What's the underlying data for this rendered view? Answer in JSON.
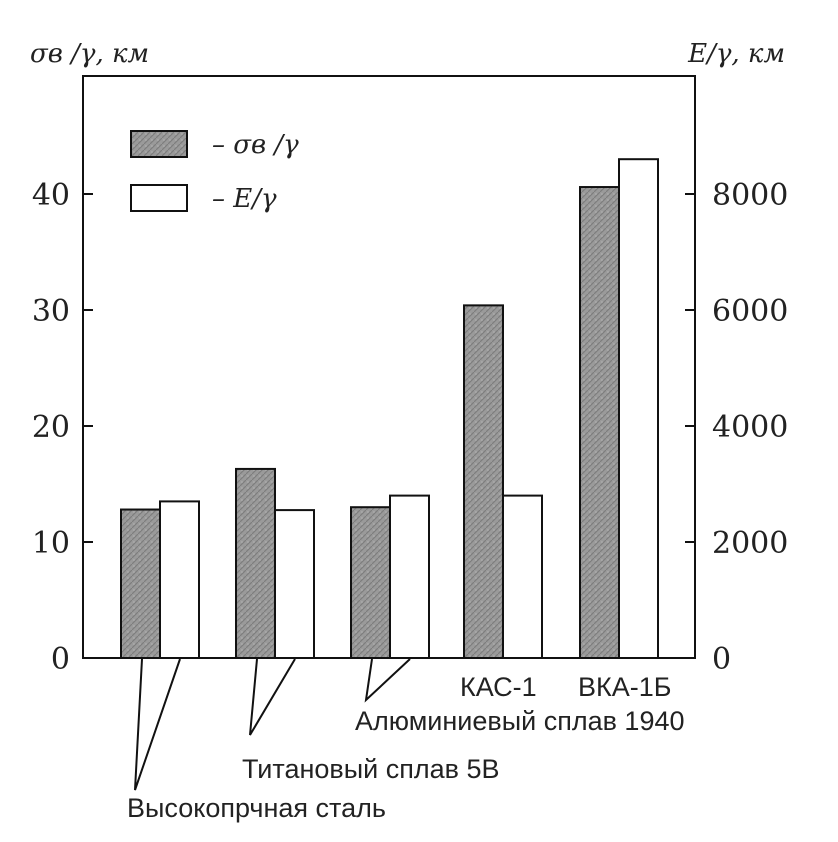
{
  "chart_data": {
    "type": "bar",
    "left_axis_title": "σв /γ, км",
    "right_axis_title": "E/γ, км",
    "left_ticks": [
      "0",
      "10",
      "20",
      "30",
      "40"
    ],
    "left_tick_values": [
      0,
      10,
      20,
      30,
      40
    ],
    "right_ticks": [
      "0",
      "2000",
      "4000",
      "6000",
      "8000"
    ],
    "right_tick_values": [
      0,
      2000,
      4000,
      6000,
      8000
    ],
    "ylim_left": [
      0,
      50
    ],
    "ylim_right": [
      0,
      10000
    ],
    "categories": [
      "Высокопрчная сталь",
      "Титановый сплав 5В",
      "Алюминиевый сплав 1940",
      "КАС-1",
      "ВКА-1Б"
    ],
    "series": [
      {
        "name": "– σв /γ",
        "axis": "left",
        "fill": "gray",
        "values": [
          12.8,
          16.3,
          13.0,
          30.4,
          40.6
        ]
      },
      {
        "name": "– E/γ",
        "axis": "right",
        "fill": "white",
        "values": [
          2700,
          2550,
          2800,
          2800,
          8600
        ]
      }
    ],
    "legend_position": "top-left",
    "grid": false
  }
}
